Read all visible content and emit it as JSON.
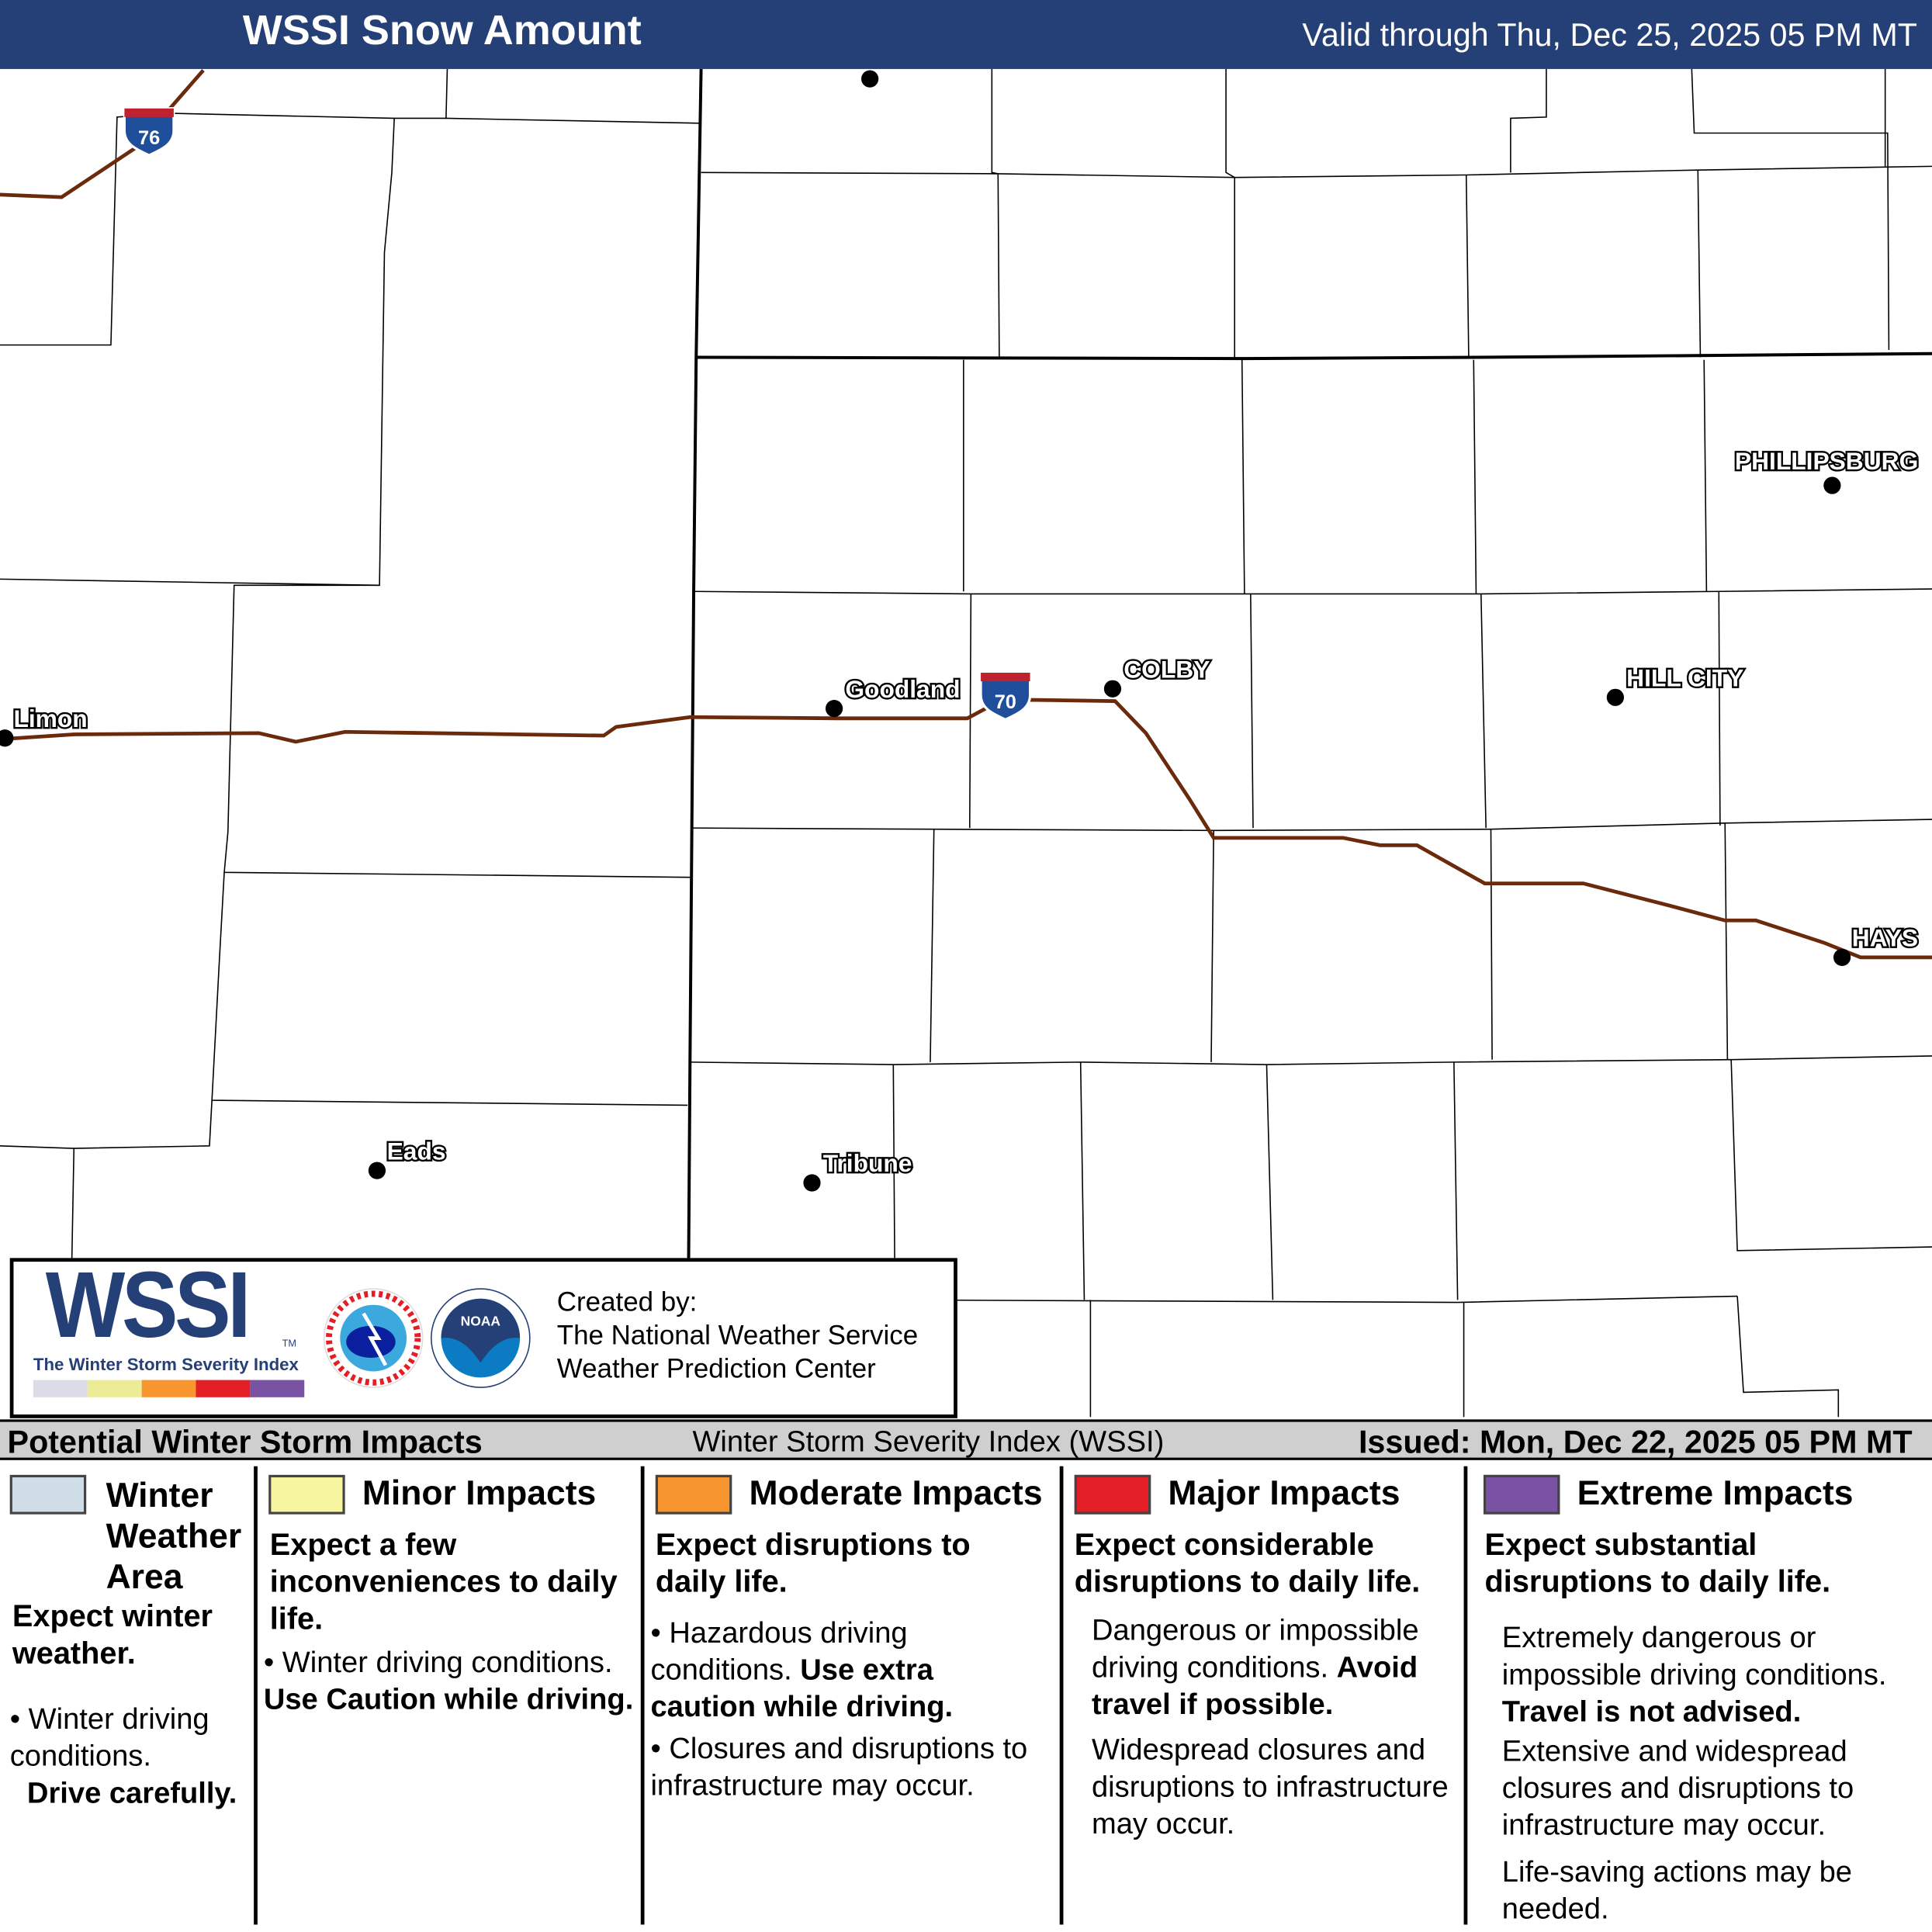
{
  "header": {
    "title": "WSSI Snow Amount",
    "valid": "Valid through Thu, Dec 25, 2025 05 PM MT"
  },
  "map": {
    "highways": [
      {
        "name": "76",
        "type": "interstate"
      },
      {
        "name": "70",
        "type": "interstate"
      }
    ],
    "cities": [
      "Limon",
      "Goodland",
      "COLBY",
      "HILL CITY",
      "PHILLIPSBURG",
      "HAYS",
      "Eads",
      "Tribune"
    ],
    "colors": {
      "highway": "#6b2a0c",
      "interstate_blue": "#1f4f9a",
      "interstate_red": "#c0212f"
    }
  },
  "logo": {
    "wssi": "WSSI",
    "tm": "TM",
    "subtitle": "The Winter Storm Severity Index",
    "created_by": [
      "Created by:",
      "The National Weather Service",
      "Weather Prediction Center"
    ],
    "nws_logo": "NATIONAL WEATHER SERVICE",
    "noaa_logo": "NOAA"
  },
  "bar": {
    "left": "Potential Winter Storm Impacts",
    "center": "Winter Storm Severity Index (WSSI)",
    "right": "Issued: Mon, Dec 22, 2025 05 PM MT"
  },
  "legend": [
    {
      "title": "Winter Weather Area",
      "color": "#cfdde6",
      "summary": "Expect winter weather.",
      "bullets": [
        "Winter driving conditions."
      ],
      "emphasis": "Drive carefully."
    },
    {
      "title": "Minor Impacts",
      "color": "#f7f59f",
      "summary": "Expect a few inconveniences to daily life.",
      "bullets": [
        "Winter driving conditions."
      ],
      "emphasis": "Use Caution while driving."
    },
    {
      "title": "Moderate Impacts",
      "color": "#f7962f",
      "summary": "Expect disruptions to daily life.",
      "bullets": [
        "Hazardous driving conditions.",
        "Closures and disruptions to infrastructure may occur."
      ],
      "emphasis": "Use extra caution while driving."
    },
    {
      "title": "Major Impacts",
      "color": "#e31e26",
      "summary": "Expect considerable disruptions to daily life.",
      "bullets": [
        "Dangerous or impossible driving conditions.",
        "Widespread closures and disruptions to infrastructure may occur."
      ],
      "emphasis": "Avoid travel if possible."
    },
    {
      "title": "Extreme Impacts",
      "color": "#7a52a3",
      "summary": "Expect substantial disruptions to daily life.",
      "bullets": [
        "Extremely dangerous or impossible driving conditions.",
        "Extensive and widespread closures and disruptions to infrastructure may occur.",
        "Life-saving actions may be needed."
      ],
      "emphasis": "Travel is not advised."
    }
  ]
}
